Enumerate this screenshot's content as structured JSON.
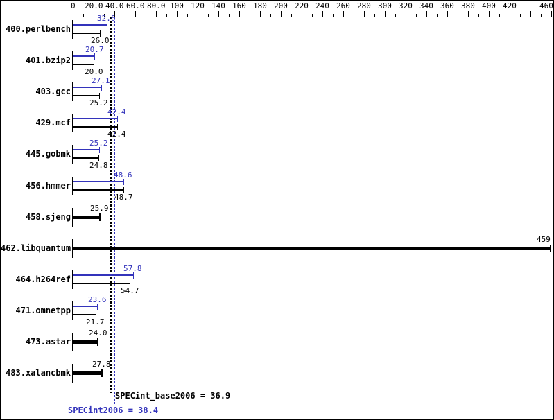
{
  "chart_data": {
    "type": "bar",
    "orientation": "horizontal",
    "title": "",
    "axis": {
      "min": 0,
      "max": 460,
      "major_step": 20,
      "minor_step": 10,
      "tick_labels": [
        {
          "v": 0,
          "t": "0"
        },
        {
          "v": 20,
          "t": "20.0"
        },
        {
          "v": 40,
          "t": "40.0"
        },
        {
          "v": 60,
          "t": "60.0"
        },
        {
          "v": 80,
          "t": "80.0"
        },
        {
          "v": 100,
          "t": "100"
        },
        {
          "v": 120,
          "t": "120"
        },
        {
          "v": 140,
          "t": "140"
        },
        {
          "v": 160,
          "t": "160"
        },
        {
          "v": 180,
          "t": "180"
        },
        {
          "v": 200,
          "t": "200"
        },
        {
          "v": 220,
          "t": "220"
        },
        {
          "v": 240,
          "t": "240"
        },
        {
          "v": 260,
          "t": "260"
        },
        {
          "v": 280,
          "t": "280"
        },
        {
          "v": 300,
          "t": "300"
        },
        {
          "v": 320,
          "t": "320"
        },
        {
          "v": 340,
          "t": "340"
        },
        {
          "v": 360,
          "t": "360"
        },
        {
          "v": 380,
          "t": "380"
        },
        {
          "v": 400,
          "t": "400"
        },
        {
          "v": 420,
          "t": "420"
        },
        {
          "v": 460,
          "t": "460"
        }
      ]
    },
    "benchmarks": [
      {
        "name": "400.perlbench",
        "peak": 32.6,
        "peak_text": "32.6",
        "base": 26.0,
        "base_text": "26.0",
        "single": false
      },
      {
        "name": "401.bzip2",
        "peak": 20.7,
        "peak_text": "20.7",
        "base": 20.0,
        "base_text": "20.0",
        "single": false
      },
      {
        "name": "403.gcc",
        "peak": 27.1,
        "peak_text": "27.1",
        "base": 25.2,
        "base_text": "25.2",
        "single": false
      },
      {
        "name": "429.mcf",
        "peak": 42.4,
        "peak_text": "42.4",
        "base": 42.4,
        "base_text": "42.4",
        "single": false
      },
      {
        "name": "445.gobmk",
        "peak": 25.2,
        "peak_text": "25.2",
        "base": 24.8,
        "base_text": "24.8",
        "single": false
      },
      {
        "name": "456.hmmer",
        "peak": 48.6,
        "peak_text": "48.6",
        "base": 48.7,
        "base_text": "48.7",
        "single": false
      },
      {
        "name": "458.sjeng",
        "base": 25.9,
        "base_text": "25.9",
        "single": true
      },
      {
        "name": "462.libquantum",
        "base": 459,
        "base_text": "459",
        "single": true
      },
      {
        "name": "464.h264ref",
        "peak": 57.8,
        "peak_text": "57.8",
        "base": 54.7,
        "base_text": "54.7",
        "single": false
      },
      {
        "name": "471.omnetpp",
        "peak": 23.6,
        "peak_text": "23.6",
        "base": 21.7,
        "base_text": "21.7",
        "single": false
      },
      {
        "name": "473.astar",
        "base": 24.0,
        "base_text": "24.0",
        "single": true
      },
      {
        "name": "483.xalancbmk",
        "base": 27.8,
        "base_text": "27.8",
        "single": true
      }
    ],
    "summary": {
      "base_text": "SPECint_base2006 = 36.9",
      "base_value": 36.9,
      "peak_text": "SPECint2006 = 38.4",
      "peak_value": 38.4
    },
    "colors": {
      "peak": "#3333bb",
      "base": "#000000",
      "background": "#ffffff",
      "border": "#000000"
    }
  }
}
